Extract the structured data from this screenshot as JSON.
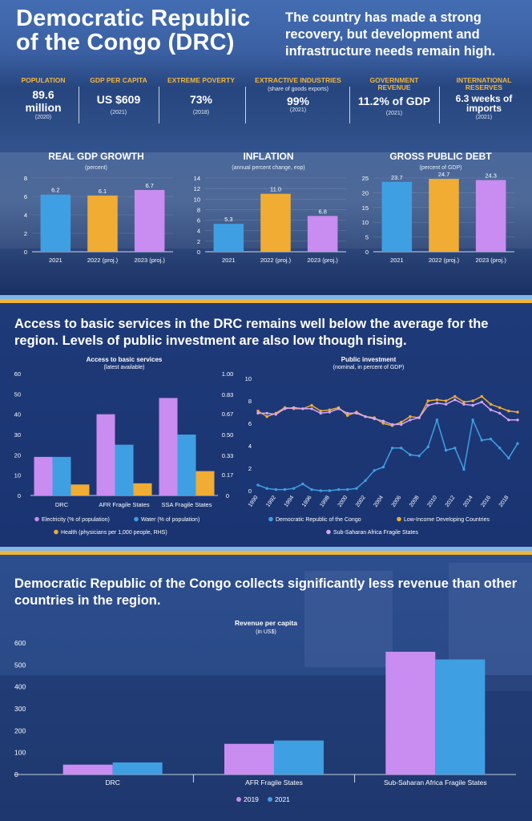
{
  "header": {
    "title_line1": "Democratic Republic",
    "title_line2": "of the Congo (DRC)",
    "subtitle": "The country has made a strong recovery, but development and infrastructure needs remain high."
  },
  "stats": [
    {
      "label": "POPULATION",
      "label2": "",
      "sub": "",
      "value": "89.6",
      "value2": "million",
      "year": "(2020)"
    },
    {
      "label": "GDP PER CAPITA",
      "label2": "",
      "sub": "",
      "value": "US $609",
      "value2": "",
      "year": "(2021)"
    },
    {
      "label": "EXTREME POVERTY",
      "label2": "",
      "sub": "",
      "value": "73%",
      "value2": "",
      "year": "(2018)"
    },
    {
      "label": "EXTRACTIVE INDUSTRIES",
      "label2": "",
      "sub": "(share of goods exports)",
      "value": "99%",
      "value2": "",
      "year": "(2021)"
    },
    {
      "label": "GOVERNMENT",
      "label2": "REVENUE",
      "sub": "",
      "value": "11.2% of GDP",
      "value2": "",
      "year": "(2021)"
    },
    {
      "label": "INTERNATIONAL",
      "label2": "RESERVES",
      "sub": "",
      "value": "6.3 weeks of",
      "value2": "imports",
      "year": "(2021)"
    }
  ],
  "colors": {
    "blue": "#3f9fe3",
    "gold": "#f0ac33",
    "purple": "#c98cf0",
    "lightpurple": "#d3a6f5",
    "bandblue": "#7fb7e6",
    "bandgold": "#f0b43a"
  },
  "section2": {
    "title": "Access to basic services in the DRC remains well below the average for the region. Levels of public investment are also low though rising."
  },
  "section3": {
    "title": "Democratic Republic of the Congo collects significantly less revenue than other countries in the region."
  },
  "chart_data": [
    {
      "id": "gdp",
      "type": "bar",
      "title": "REAL GDP GROWTH",
      "subtitle": "(percent)",
      "categories": [
        "2021",
        "2022 (proj.)",
        "2023 (proj.)"
      ],
      "values": [
        6.2,
        6.1,
        6.7
      ],
      "value_labels": [
        "6.2",
        "6.1",
        "6.7"
      ],
      "colors": [
        "#3f9fe3",
        "#f0ac33",
        "#c98cf0"
      ],
      "ylim": [
        0,
        8
      ],
      "yticks": [
        0,
        2,
        4,
        6,
        8
      ],
      "ytick_labels": [
        "0",
        "2",
        "4",
        "6",
        "8"
      ]
    },
    {
      "id": "inflation",
      "type": "bar",
      "title": "INFLATION",
      "subtitle": "(annual percent change, eop)",
      "categories": [
        "2021",
        "2022 (proj.)",
        "2023 (proj.)"
      ],
      "values": [
        5.3,
        11.0,
        6.8
      ],
      "value_labels": [
        "5.3",
        "11.0",
        "6.8"
      ],
      "colors": [
        "#3f9fe3",
        "#f0ac33",
        "#c98cf0"
      ],
      "ylim": [
        0,
        14
      ],
      "yticks": [
        0,
        2,
        4,
        6,
        8,
        10,
        12,
        14
      ],
      "ytick_labels": [
        "0",
        "2",
        "4",
        "6",
        "8",
        "10",
        "12",
        "14"
      ]
    },
    {
      "id": "debt",
      "type": "bar",
      "title": "GROSS PUBLIC DEBT",
      "subtitle": "(percent of GDP)",
      "categories": [
        "2021",
        "2022 (proj.)",
        "2023 (proj.)"
      ],
      "values": [
        23.7,
        24.7,
        24.3
      ],
      "value_labels": [
        "23.7",
        "24.7",
        "24.3"
      ],
      "colors": [
        "#3f9fe3",
        "#f0ac33",
        "#c98cf0"
      ],
      "ylim": [
        0,
        25
      ],
      "yticks": [
        0,
        5,
        10,
        15,
        20,
        25
      ],
      "ytick_labels": [
        "0",
        "5",
        "10",
        "15",
        "20",
        "25"
      ]
    },
    {
      "id": "access",
      "type": "bar",
      "title": "Access to basic services",
      "subtitle": "(latest available)",
      "categories": [
        "DRC",
        "AFR Fragile States",
        "SSA Fragile States"
      ],
      "series": [
        {
          "name": "Electricity (% of population)",
          "axis": "left",
          "color": "#c98cf0",
          "values": [
            19,
            40,
            48
          ]
        },
        {
          "name": "Water (% of population)",
          "axis": "left",
          "color": "#3f9fe3",
          "values": [
            19,
            25,
            30
          ]
        },
        {
          "name": "Health (physicians per 1,000 people, RHS)",
          "axis": "right",
          "color": "#f0ac33",
          "values": [
            0.09,
            0.1,
            0.2
          ]
        }
      ],
      "ylim": [
        0,
        60
      ],
      "yticks": [
        0,
        10,
        20,
        30,
        40,
        50,
        60
      ],
      "ytick_labels": [
        "0",
        "10",
        "20",
        "30",
        "40",
        "50",
        "60"
      ],
      "y2lim": [
        0,
        1
      ],
      "y2ticks": [
        0,
        0.17,
        0.33,
        0.5,
        0.67,
        0.83,
        1
      ],
      "y2tick_labels": [
        "0",
        "0.17",
        "0.33",
        "0.50",
        "0.67",
        "0.83",
        "1.00"
      ]
    },
    {
      "id": "investment",
      "type": "line",
      "title": "Public investment",
      "subtitle": "(nominal, in percent of GDP)",
      "x": [
        1990,
        1991,
        1992,
        1993,
        1994,
        1995,
        1996,
        1997,
        1998,
        1999,
        2000,
        2001,
        2002,
        2003,
        2004,
        2005,
        2006,
        2007,
        2008,
        2009,
        2010,
        2011,
        2012,
        2013,
        2014,
        2015,
        2016,
        2017,
        2018,
        2019
      ],
      "xtick_labels": [
        "1990",
        "1992",
        "1994",
        "1996",
        "1998",
        "2000",
        "2002",
        "2004",
        "2006",
        "2008",
        "2010",
        "2012",
        "2014",
        "2016",
        "2018"
      ],
      "series": [
        {
          "name": "Democratic Republic of the Congo",
          "color": "#3f9fe3",
          "values": [
            0.5,
            0.2,
            0.1,
            0.1,
            0.2,
            0.6,
            0.1,
            0.0,
            0.0,
            0.1,
            0.1,
            0.2,
            0.9,
            1.8,
            2.1,
            3.8,
            3.8,
            3.2,
            3.1,
            3.9,
            6.3,
            3.6,
            3.8,
            1.9,
            6.3,
            4.5,
            4.6,
            3.8,
            2.9,
            4.2
          ]
        },
        {
          "name": "Low-Income Developing Countries",
          "color": "#f0ac33",
          "values": [
            7.1,
            6.6,
            6.9,
            7.4,
            7.3,
            7.3,
            7.6,
            7.1,
            7.2,
            7.4,
            6.7,
            7.0,
            6.6,
            6.5,
            6.0,
            5.8,
            6.1,
            6.6,
            6.5,
            8.0,
            8.1,
            8.0,
            8.4,
            7.9,
            8.0,
            8.4,
            7.7,
            7.4,
            7.1,
            7.0
          ]
        },
        {
          "name": "Sub-Saharan Africa Fragile States",
          "color": "#d3a6f5",
          "values": [
            6.9,
            6.9,
            6.8,
            7.3,
            7.4,
            7.3,
            7.3,
            6.9,
            7.0,
            7.3,
            6.9,
            6.9,
            6.6,
            6.4,
            6.2,
            5.9,
            5.9,
            6.3,
            6.5,
            7.6,
            7.8,
            7.7,
            8.1,
            7.7,
            7.6,
            7.9,
            7.2,
            6.9,
            6.3,
            6.3
          ]
        }
      ],
      "ylim": [
        0,
        10
      ],
      "yticks": [
        0,
        2,
        4,
        6,
        8,
        10
      ],
      "ytick_labels": [
        "0",
        "2",
        "4",
        "6",
        "8",
        "10"
      ]
    },
    {
      "id": "revenue",
      "type": "bar",
      "title": "Revenue per capita",
      "subtitle": "(in US$)",
      "categories": [
        "DRC",
        "AFR Fragile States",
        "Sub-Saharan Africa Fragile States"
      ],
      "series": [
        {
          "name": "2019",
          "color": "#c98cf0",
          "values": [
            45,
            140,
            560
          ]
        },
        {
          "name": "2021",
          "color": "#3f9fe3",
          "values": [
            55,
            155,
            525
          ]
        }
      ],
      "ylim": [
        0,
        600
      ],
      "yticks": [
        0,
        100,
        200,
        300,
        400,
        500,
        600
      ],
      "ytick_labels": [
        "0",
        "100",
        "200",
        "300",
        "400",
        "500",
        "600"
      ]
    }
  ]
}
